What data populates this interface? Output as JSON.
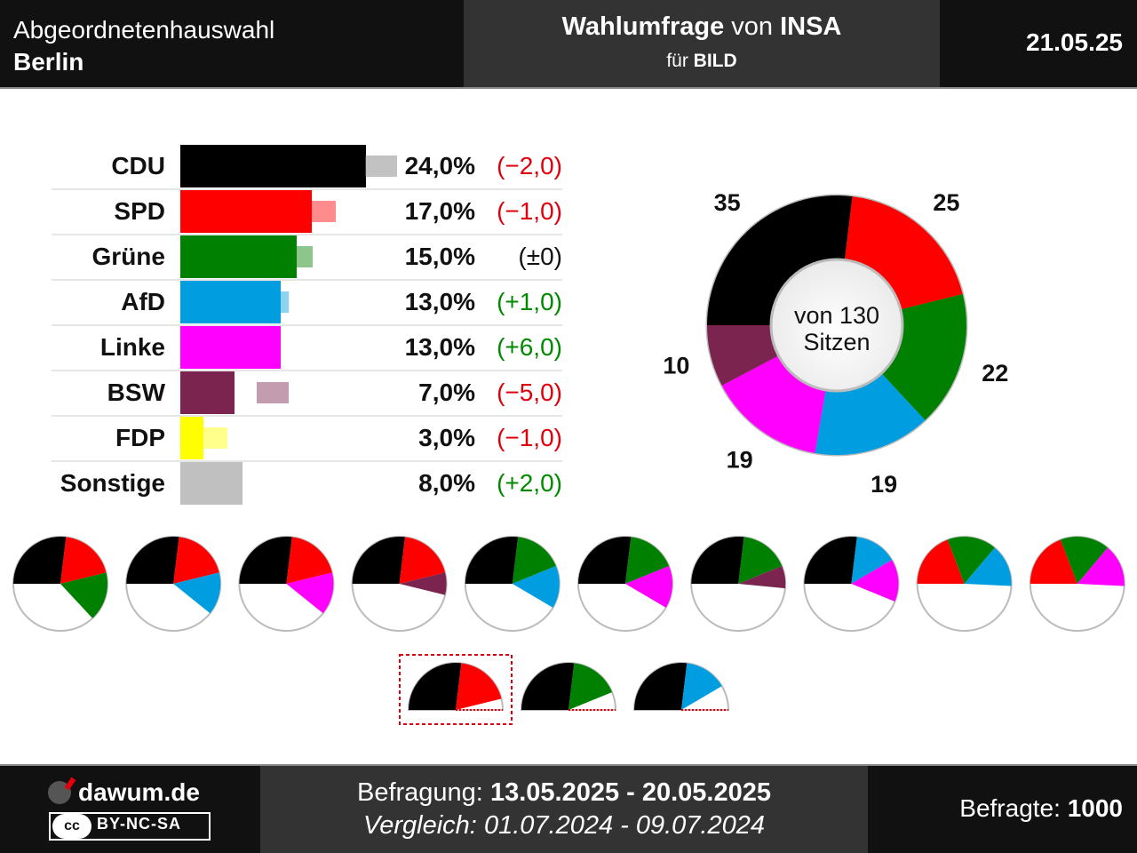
{
  "header": {
    "election_title": "Abgeordnetenhauswahl",
    "region": "Berlin",
    "poll_prefix": "Wahlumfrage",
    "poll_von": "von",
    "institute": "INSA",
    "client_prefix": "für",
    "client": "BILD",
    "date": "21.05.25"
  },
  "chart_data": [
    {
      "type": "bar",
      "categories": [
        "CDU",
        "SPD",
        "Grüne",
        "AfD",
        "Linke",
        "BSW",
        "FDP",
        "Sonstige"
      ],
      "values": [
        24.0,
        17.0,
        15.0,
        13.0,
        13.0,
        7.0,
        3.0,
        8.0
      ],
      "previous_values": [
        26.0,
        18.0,
        15.0,
        12.0,
        7.0,
        12.0,
        4.0,
        6.0
      ],
      "value_labels": [
        "24,0%",
        "17,0%",
        "15,0%",
        "13,0%",
        "13,0%",
        "7,0%",
        "3,0%",
        "8,0%"
      ],
      "change_labels": [
        "(−2,0)",
        "(−1,0)",
        "(±0)",
        "(+1,0)",
        "(+6,0)",
        "(−5,0)",
        "(−1,0)",
        "(+2,0)"
      ],
      "change_colors": [
        "#e0000d",
        "#e0000d",
        "#111111",
        "#008a00",
        "#008a00",
        "#e0000d",
        "#e0000d",
        "#008a00"
      ],
      "colors": [
        "#000000",
        "#ff0000",
        "#008000",
        "#009ee0",
        "#ff00ff",
        "#7b2450",
        "#ffff00",
        "#c0c0c0"
      ]
    },
    {
      "type": "pie",
      "center_text": [
        "von 130",
        "Sitzen"
      ],
      "slices": [
        {
          "party": "CDU",
          "seats": 35,
          "color": "#000000"
        },
        {
          "party": "SPD",
          "seats": 25,
          "color": "#ff0000"
        },
        {
          "party": "Grüne",
          "seats": 22,
          "color": "#008000"
        },
        {
          "party": "AfD",
          "seats": 19,
          "color": "#009ee0"
        },
        {
          "party": "Linke",
          "seats": 19,
          "color": "#ff00ff"
        },
        {
          "party": "BSW",
          "seats": 10,
          "color": "#7b2450"
        }
      ],
      "total": 130
    },
    {
      "type": "pie",
      "coalitions_full": [
        [
          "CDU",
          "SPD",
          "Grüne"
        ],
        [
          "CDU",
          "SPD",
          "AfD"
        ],
        [
          "CDU",
          "SPD",
          "Linke"
        ],
        [
          "CDU",
          "SPD",
          "BSW"
        ],
        [
          "CDU",
          "Grüne",
          "AfD"
        ],
        [
          "CDU",
          "Grüne",
          "Linke"
        ],
        [
          "CDU",
          "Grüne",
          "BSW"
        ],
        [
          "CDU",
          "AfD",
          "Linke"
        ],
        [
          "SPD",
          "Grüne",
          "AfD"
        ],
        [
          "SPD",
          "Grüne",
          "Linke"
        ]
      ],
      "coalitions_half": [
        {
          "parties": [
            "CDU",
            "SPD"
          ],
          "highlighted": true
        },
        {
          "parties": [
            "CDU",
            "Grüne"
          ],
          "highlighted": false
        },
        {
          "parties": [
            "CDU",
            "AfD"
          ],
          "highlighted": false
        }
      ]
    }
  ],
  "footer": {
    "site": "dawum.de",
    "license": "BY-NC-SA",
    "license_icon": "cc",
    "survey_label": "Befragung:",
    "survey_period": "13.05.2025 - 20.05.2025",
    "compare_label": "Vergleich:",
    "compare_period": "01.07.2024 - 09.07.2024",
    "respondents_label": "Befragte:",
    "respondents": "1000"
  }
}
